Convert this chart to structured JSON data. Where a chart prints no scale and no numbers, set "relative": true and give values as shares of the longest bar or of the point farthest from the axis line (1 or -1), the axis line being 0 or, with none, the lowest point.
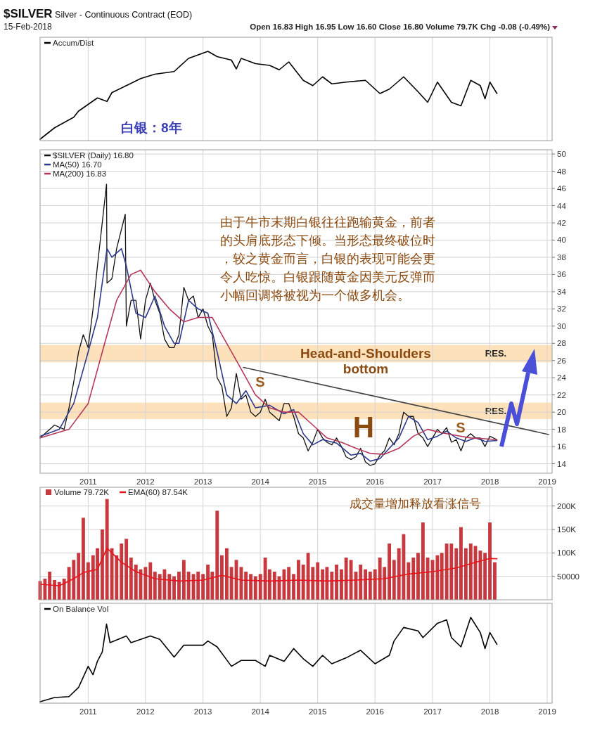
{
  "chart_data": [
    {
      "type": "line",
      "title": "$SILVER Silver - Continuous Contract (EOD)",
      "subtitle": "15-Feb-2018",
      "annotations": [
        "Open 16.83 High 16.95 Low 16.60 Close 16.80 Volume 79.7K Chg -0.08 (-0.49%)",
        "白银：8年"
      ],
      "relative": true,
      "grid": true,
      "legend": "top left",
      "tick_labels": false,
      "xlim": [
        "2010-03-01",
        "2019-02-01"
      ],
      "xticks": [
        {
          "value": "2011-01-01",
          "label": null
        },
        {
          "value": "2012-01-01",
          "label": null
        },
        {
          "value": "2013-01-01",
          "label": null
        },
        {
          "value": "2014-01-01",
          "label": null
        },
        {
          "value": "2015-01-01",
          "label": null
        },
        {
          "value": "2016-01-01",
          "label": null
        },
        {
          "value": "2017-01-01",
          "label": null
        },
        {
          "value": "2018-01-01",
          "label": null
        },
        {
          "value": "2019-01-01",
          "label": null
        }
      ],
      "series": [
        {
          "name": "Accum/Dist",
          "color": "#000000",
          "x": [
            "2010-03",
            "2010-06",
            "2010-10",
            "2010-11",
            "2011-03",
            "2011-05",
            "2011-06",
            "2011-09",
            "2011-12",
            "2012-03",
            "2012-07",
            "2012-10",
            "2013-01",
            "2013-02",
            "2013-04",
            "2013-07",
            "2013-08",
            "2013-09",
            "2013-12",
            "2014-03",
            "2014-05",
            "2014-07",
            "2014-10",
            "2014-12",
            "2015-02",
            "2015-04",
            "2015-07",
            "2015-11",
            "2016-02",
            "2016-04",
            "2016-07",
            "2016-10",
            "2016-12",
            "2017-02",
            "2017-05",
            "2017-07",
            "2017-09",
            "2017-11",
            "2017-12",
            "2018-01",
            "2018-02-15"
          ],
          "values": [
            0,
            0.13,
            0.25,
            0.32,
            0.47,
            0.43,
            0.53,
            0.61,
            0.69,
            0.74,
            0.77,
            0.92,
            0.98,
            1,
            0.94,
            0.9,
            0.8,
            0.92,
            0.86,
            0.84,
            0.79,
            0.88,
            0.67,
            0.61,
            0.71,
            0.63,
            0.65,
            0.67,
            0.52,
            0.57,
            0.71,
            0.54,
            0.42,
            0.65,
            0.42,
            0.38,
            0.67,
            0.61,
            0.46,
            0.65,
            0.52
          ]
        }
      ]
    },
    {
      "type": "line",
      "grid": true,
      "legend": "top left",
      "xlim": [
        "2010-03-01",
        "2019-02-01"
      ],
      "xticks": [
        {
          "value": "2011-01-01",
          "label": "2011"
        },
        {
          "value": "2012-01-01",
          "label": "2012"
        },
        {
          "value": "2013-01-01",
          "label": "2013"
        },
        {
          "value": "2014-01-01",
          "label": "2014"
        },
        {
          "value": "2015-01-01",
          "label": "2015"
        },
        {
          "value": "2016-01-01",
          "label": "2016"
        },
        {
          "value": "2017-01-01",
          "label": "2017"
        },
        {
          "value": "2018-01-01",
          "label": "2018"
        },
        {
          "value": "2019-01-01",
          "label": "2019"
        }
      ],
      "ylim": [
        12.9,
        50.5
      ],
      "yticks": [
        14,
        16,
        18,
        20,
        22,
        24,
        26,
        28,
        30,
        32,
        34,
        36,
        38,
        40,
        42,
        44,
        46,
        48,
        50
      ],
      "annotations": [
        "由于牛市末期白银往往跑输黄金，前者的头肩底形态下倾。当形态最终破位时，较之黄金而言，白银的表现可能会更令人吃惊。白银跟随黄金因美元反弹而小幅回调将被视为一个做多机会。",
        "Head-and-Shoulders bottom",
        "S",
        "H",
        "S"
      ],
      "bands": [
        {
          "axis": "y",
          "from": 25.8,
          "to": 27.8,
          "label": "RES.",
          "color": "#fbdcae"
        },
        {
          "axis": "y",
          "from": 19.2,
          "to": 21.1,
          "label": "RES.",
          "color": "#fbdcae"
        }
      ],
      "series": [
        {
          "name": "$SILVER (Daily) 16.80",
          "color": "#111111",
          "x": [
            "2010-03",
            "2010-06",
            "2010-08",
            "2010-09",
            "2010-10",
            "2010-11",
            "2010-12",
            "2011-01",
            "2011-02",
            "2011-03",
            "2011-04-28",
            "2011-05",
            "2011-06",
            "2011-07",
            "2011-08-25",
            "2011-09",
            "2011-10",
            "2011-11",
            "2011-12",
            "2012-01",
            "2012-02",
            "2012-03",
            "2012-04",
            "2012-05",
            "2012-06",
            "2012-07",
            "2012-08",
            "2012-09",
            "2012-10",
            "2012-11",
            "2012-12",
            "2013-01",
            "2013-02",
            "2013-03",
            "2013-04",
            "2013-05",
            "2013-06",
            "2013-07",
            "2013-08",
            "2013-09",
            "2013-10",
            "2013-11",
            "2013-12",
            "2014-01",
            "2014-02",
            "2014-03",
            "2014-04",
            "2014-05",
            "2014-06",
            "2014-07",
            "2014-08",
            "2014-09",
            "2014-10",
            "2014-11",
            "2014-12",
            "2015-01",
            "2015-02",
            "2015-03",
            "2015-04",
            "2015-05",
            "2015-06",
            "2015-07",
            "2015-08",
            "2015-09",
            "2015-10",
            "2015-11",
            "2015-12",
            "2016-01",
            "2016-02",
            "2016-03",
            "2016-04",
            "2016-05",
            "2016-06",
            "2016-07",
            "2016-08",
            "2016-09",
            "2016-10",
            "2016-11",
            "2016-12",
            "2017-01",
            "2017-02",
            "2017-03",
            "2017-04",
            "2017-05",
            "2017-06",
            "2017-07",
            "2017-08",
            "2017-09",
            "2017-10",
            "2017-11",
            "2017-12",
            "2018-01",
            "2018-02-15"
          ],
          "values": [
            17,
            18.5,
            18,
            20.5,
            23.5,
            27,
            29,
            27.5,
            32,
            37,
            46.5,
            35,
            35.5,
            39,
            43,
            30,
            33,
            33,
            28.5,
            33,
            35,
            33,
            31.5,
            28.5,
            27.5,
            27.5,
            29,
            34.5,
            33,
            33.5,
            31,
            32,
            30,
            29,
            24,
            23,
            19.5,
            20.5,
            24.5,
            21.5,
            22,
            20,
            19.5,
            20,
            21.5,
            20,
            19.5,
            19,
            21,
            21,
            19.5,
            17.5,
            17,
            15.5,
            16.5,
            18,
            17,
            16.5,
            16.2,
            17,
            16,
            14.8,
            14.5,
            14.8,
            15.8,
            14.2,
            13.8,
            14,
            15,
            15.5,
            17,
            16.2,
            17.5,
            20,
            19.5,
            19.5,
            17.5,
            17,
            16,
            17,
            18,
            17.5,
            18.2,
            16.5,
            16.8,
            15.5,
            17,
            17.5,
            17,
            17,
            16,
            17.2,
            16.8
          ]
        },
        {
          "name": "MA(50) 16.70",
          "color": "#2b3a8c",
          "x": [
            "2010-03",
            "2010-07",
            "2010-10",
            "2011-01",
            "2011-03",
            "2011-05",
            "2011-06",
            "2011-08",
            "2011-09",
            "2011-11",
            "2012-01",
            "2012-03",
            "2012-05",
            "2012-07",
            "2012-08",
            "2012-10",
            "2012-12",
            "2013-02",
            "2013-04",
            "2013-06",
            "2013-08",
            "2013-10",
            "2013-12",
            "2014-03",
            "2014-06",
            "2014-08",
            "2014-10",
            "2014-12",
            "2015-02",
            "2015-05",
            "2015-08",
            "2015-10",
            "2015-12",
            "2016-02",
            "2016-04",
            "2016-06",
            "2016-08",
            "2016-10",
            "2016-12",
            "2017-02",
            "2017-04",
            "2017-06",
            "2017-08",
            "2017-10",
            "2017-12",
            "2018-02-15"
          ],
          "values": [
            17.2,
            18,
            21,
            27,
            31,
            39,
            38,
            39,
            37,
            31.5,
            31,
            33.5,
            30,
            28,
            28,
            33,
            32,
            31.5,
            27,
            22,
            21,
            22.5,
            20.5,
            20.8,
            19.8,
            20.3,
            17.5,
            16.2,
            16.8,
            16.4,
            15,
            15.2,
            14.3,
            14.6,
            15.8,
            17,
            19.5,
            18.8,
            16.8,
            17.2,
            17.8,
            17,
            16.6,
            17,
            16.6,
            16.7
          ]
        },
        {
          "name": "MA(200) 16.83",
          "color": "#b5385a",
          "x": [
            "2010-03",
            "2010-09",
            "2011-01",
            "2011-04",
            "2011-07",
            "2011-10",
            "2011-12",
            "2012-03",
            "2012-06",
            "2012-09",
            "2012-12",
            "2013-03",
            "2013-06",
            "2013-09",
            "2013-12",
            "2014-03",
            "2014-06",
            "2014-09",
            "2014-12",
            "2015-03",
            "2015-06",
            "2015-09",
            "2015-12",
            "2016-03",
            "2016-06",
            "2016-09",
            "2016-12",
            "2017-03",
            "2017-06",
            "2017-09",
            "2017-12",
            "2018-02-15"
          ],
          "values": [
            17,
            18,
            21,
            27,
            33,
            36,
            36.5,
            34,
            32,
            30.5,
            31,
            31,
            28,
            25,
            22,
            20.5,
            20,
            20,
            18.5,
            17,
            16.5,
            15.8,
            15.2,
            15.1,
            15.8,
            17.2,
            18,
            17.6,
            17.3,
            17,
            16.9,
            16.8
          ]
        },
        {
          "color": "#444444",
          "x": [
            "2013-09-15",
            "2019-01-10"
          ],
          "values": [
            25.2,
            17.4
          ]
        }
      ]
    },
    {
      "type": "bar",
      "grid": true,
      "legend": "top left",
      "tick_labels": "y",
      "xlim": [
        "2010-03-01",
        "2019-02-01"
      ],
      "xticks": [
        {
          "value": "2011-01-01",
          "label": null
        },
        {
          "value": "2012-01-01",
          "label": null
        },
        {
          "value": "2013-01-01",
          "label": null
        },
        {
          "value": "2014-01-01",
          "label": null
        },
        {
          "value": "2015-01-01",
          "label": null
        },
        {
          "value": "2016-01-01",
          "label": null
        },
        {
          "value": "2017-01-01",
          "label": null
        },
        {
          "value": "2018-01-01",
          "label": null
        },
        {
          "value": "2019-01-01",
          "label": null
        }
      ],
      "ylim": [
        0,
        240000
      ],
      "yticks": [
        50000,
        {
          "value": 100000,
          "label": "100K"
        },
        {
          "value": 150000,
          "label": "150K"
        },
        {
          "value": 200000,
          "label": "200K"
        }
      ],
      "annotations": [
        "成交量增加释放看涨信号"
      ],
      "series": [
        {
          "name": "Volume 79.72K",
          "color": "#c8383f",
          "x": [
            "2010-03",
            "2010-04",
            "2010-05",
            "2010-06",
            "2010-07",
            "2010-08",
            "2010-09",
            "2010-10",
            "2010-11",
            "2010-12",
            "2011-01",
            "2011-02",
            "2011-03",
            "2011-04",
            "2011-05",
            "2011-06",
            "2011-07",
            "2011-08",
            "2011-09",
            "2011-10",
            "2011-11",
            "2011-12",
            "2012-01",
            "2012-02",
            "2012-03",
            "2012-04",
            "2012-05",
            "2012-06",
            "2012-07",
            "2012-08",
            "2012-09",
            "2012-10",
            "2012-11",
            "2012-12",
            "2013-01",
            "2013-02",
            "2013-03",
            "2013-04",
            "2013-05",
            "2013-06",
            "2013-07",
            "2013-08",
            "2013-09",
            "2013-10",
            "2013-11",
            "2013-12",
            "2014-01",
            "2014-02",
            "2014-03",
            "2014-04",
            "2014-05",
            "2014-06",
            "2014-07",
            "2014-08",
            "2014-09",
            "2014-10",
            "2014-11",
            "2014-12",
            "2015-01",
            "2015-02",
            "2015-03",
            "2015-04",
            "2015-05",
            "2015-06",
            "2015-07",
            "2015-08",
            "2015-09",
            "2015-10",
            "2015-11",
            "2015-12",
            "2016-01",
            "2016-02",
            "2016-03",
            "2016-04",
            "2016-05",
            "2016-06",
            "2016-07",
            "2016-08",
            "2016-09",
            "2016-10",
            "2016-11",
            "2016-12",
            "2017-01",
            "2017-02",
            "2017-03",
            "2017-04",
            "2017-05",
            "2017-06",
            "2017-07",
            "2017-08",
            "2017-09",
            "2017-10",
            "2017-11",
            "2017-12",
            "2018-01",
            "2018-02"
          ],
          "values": [
            40000,
            45000,
            60000,
            42000,
            38000,
            45000,
            70000,
            85000,
            100000,
            175000,
            80000,
            95000,
            110000,
            150000,
            215000,
            110000,
            95000,
            120000,
            130000,
            90000,
            75000,
            65000,
            70000,
            80000,
            60000,
            55000,
            65000,
            55000,
            50000,
            60000,
            85000,
            60000,
            55000,
            60000,
            55000,
            75000,
            60000,
            190000,
            95000,
            110000,
            70000,
            85000,
            70000,
            60000,
            55000,
            50000,
            55000,
            90000,
            65000,
            60000,
            50000,
            65000,
            70000,
            55000,
            85000,
            75000,
            100000,
            70000,
            80000,
            65000,
            70000,
            60000,
            75000,
            65000,
            90000,
            85000,
            60000,
            75000,
            65000,
            60000,
            65000,
            90000,
            70000,
            120000,
            85000,
            110000,
            140000,
            80000,
            90000,
            100000,
            165000,
            90000,
            85000,
            95000,
            100000,
            120000,
            120000,
            110000,
            155000,
            110000,
            120000,
            115000,
            105000,
            100000,
            165000,
            80000
          ]
        },
        {
          "name": "EMA(60) 87.54K",
          "type": "line",
          "color": "#e8141c",
          "x": [
            "2010-03",
            "2010-07",
            "2010-10",
            "2010-12",
            "2011-03",
            "2011-05",
            "2011-08",
            "2011-11",
            "2012-03",
            "2012-08",
            "2013-01",
            "2013-05",
            "2013-09",
            "2014-03",
            "2014-09",
            "2015-03",
            "2015-09",
            "2016-03",
            "2016-08",
            "2017-01",
            "2017-06",
            "2017-10",
            "2018-01",
            "2018-02-15"
          ],
          "values": [
            33000,
            30000,
            45000,
            58000,
            65000,
            110000,
            80000,
            60000,
            45000,
            40000,
            42000,
            52000,
            42000,
            40000,
            42000,
            40000,
            42000,
            45000,
            55000,
            60000,
            68000,
            80000,
            88000,
            87500
          ]
        }
      ]
    },
    {
      "type": "line",
      "relative": true,
      "grid": true,
      "legend": "top left",
      "tick_labels": "x",
      "xlim": [
        "2010-03-01",
        "2019-02-01"
      ],
      "xticks": [
        {
          "value": "2011-01-01",
          "label": "2011"
        },
        {
          "value": "2012-01-01",
          "label": "2012"
        },
        {
          "value": "2013-01-01",
          "label": "2013"
        },
        {
          "value": "2014-01-01",
          "label": "2014"
        },
        {
          "value": "2015-01-01",
          "label": "2015"
        },
        {
          "value": "2016-01-01",
          "label": "2016"
        },
        {
          "value": "2017-01-01",
          "label": "2017"
        },
        {
          "value": "2018-01-01",
          "label": "2018"
        },
        {
          "value": "2019-01-01",
          "label": "2019"
        }
      ],
      "series": [
        {
          "name": "On Balance Vol",
          "color": "#000000",
          "x": [
            "2010-03",
            "2010-06",
            "2010-09",
            "2010-11",
            "2011-01",
            "2011-02",
            "2011-03",
            "2011-04",
            "2011-04-28",
            "2011-05-20",
            "2011-09",
            "2011-10",
            "2012-02",
            "2012-04",
            "2012-07",
            "2012-09",
            "2013-01",
            "2013-02",
            "2013-04",
            "2013-07",
            "2013-09",
            "2013-12",
            "2014-02",
            "2014-03",
            "2014-06",
            "2014-08",
            "2014-10",
            "2014-12",
            "2015-02",
            "2015-04",
            "2015-07",
            "2015-10",
            "2016-01",
            "2016-04",
            "2016-05",
            "2016-07",
            "2016-10",
            "2016-11",
            "2017-02",
            "2017-04",
            "2017-05",
            "2017-07",
            "2017-09",
            "2017-11",
            "2017-12",
            "2018-01",
            "2018-02-15"
          ],
          "values": [
            0,
            0.05,
            0.06,
            0.17,
            0.42,
            0.32,
            0.48,
            0.59,
            0.92,
            0.7,
            0.78,
            0.7,
            0.78,
            0.74,
            0.53,
            0.67,
            0.67,
            0.72,
            0.65,
            0.42,
            0.49,
            0.49,
            0.42,
            0.55,
            0.48,
            0.63,
            0.51,
            0.42,
            0.55,
            0.45,
            0.52,
            0.61,
            0.45,
            0.55,
            0.72,
            0.88,
            0.84,
            0.76,
            0.93,
            0.97,
            0.76,
            0.65,
            1,
            0.82,
            0.63,
            0.82,
            0.68
          ]
        }
      ]
    }
  ]
}
